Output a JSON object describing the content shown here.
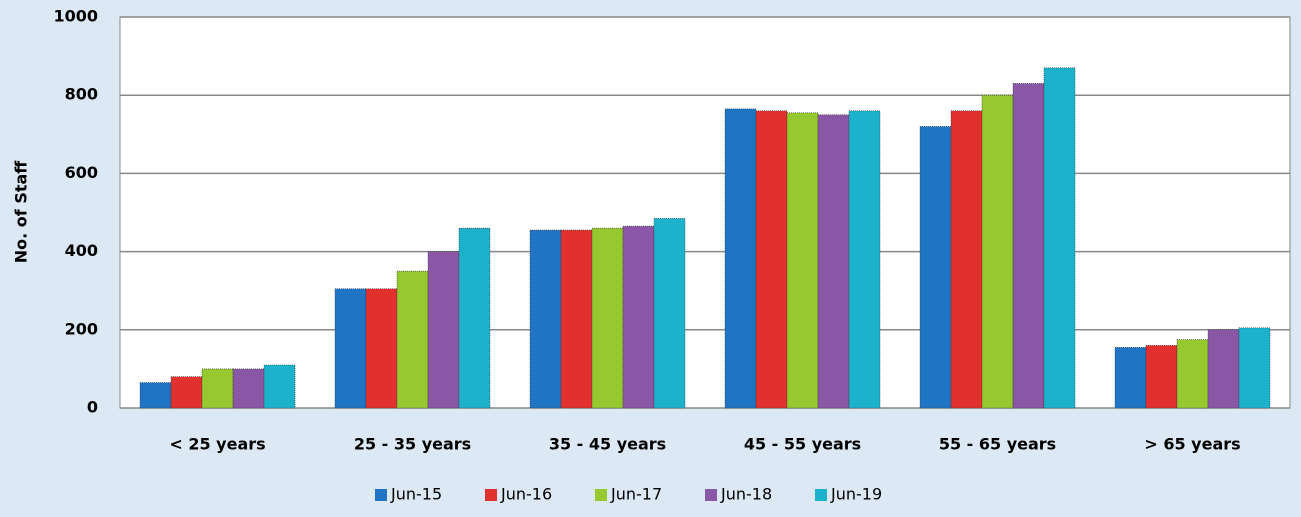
{
  "chart_data": {
    "type": "bar",
    "y_label": "No. of Staff",
    "categories": [
      "< 25 years",
      "25 - 35 years",
      "35 - 45 years",
      "45 - 55 years",
      "55 - 65 years",
      "> 65 years"
    ],
    "series": [
      {
        "name": "Jun-15",
        "color": "#1f74c4",
        "values": [
          65,
          305,
          455,
          765,
          720,
          155
        ]
      },
      {
        "name": "Jun-16",
        "color": "#e2302e",
        "values": [
          80,
          305,
          455,
          760,
          760,
          160
        ]
      },
      {
        "name": "Jun-17",
        "color": "#96c82f",
        "values": [
          100,
          350,
          460,
          755,
          800,
          175
        ]
      },
      {
        "name": "Jun-18",
        "color": "#8a57a6",
        "values": [
          100,
          400,
          465,
          750,
          830,
          200
        ]
      },
      {
        "name": "Jun-19",
        "color": "#1db2cc",
        "values": [
          110,
          460,
          485,
          760,
          870,
          205
        ]
      }
    ],
    "ylim": [
      0,
      1000
    ],
    "yticks": [
      0,
      200,
      400,
      600,
      800,
      1000
    ],
    "grid": true,
    "legend": "bottom"
  }
}
